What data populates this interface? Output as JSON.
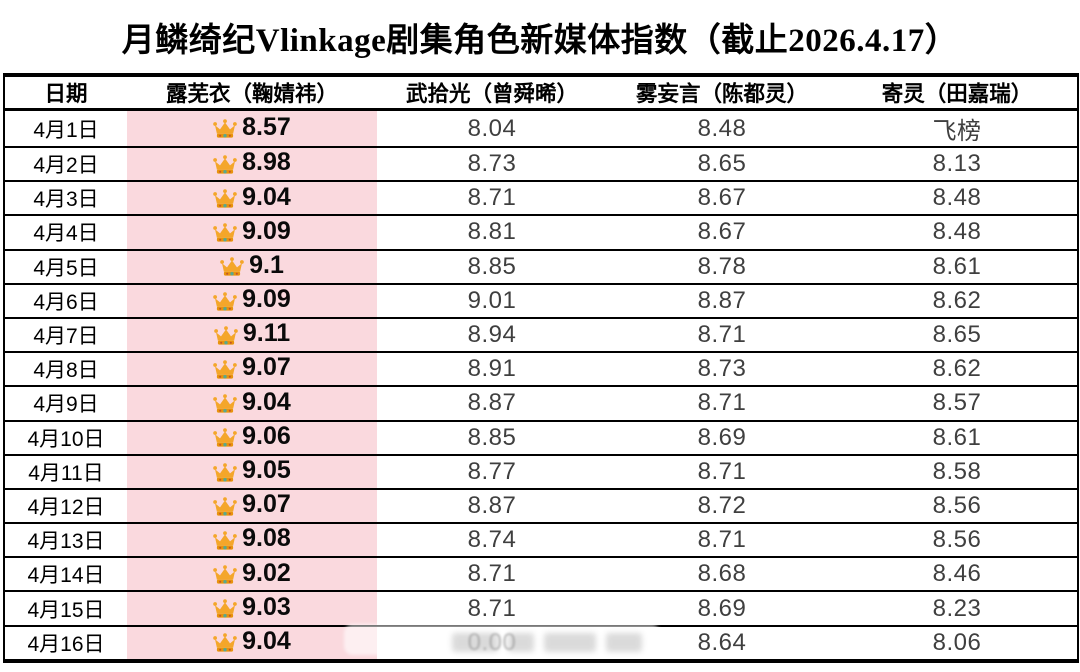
{
  "title": "月鳞绮纪Vlinkage剧集角色新媒体指数（截止2026.4.17）",
  "table": {
    "columns": [
      "日期",
      "露芜衣（鞠婧祎）",
      "武拾光（曾舜晞）",
      "雾妄言（陈都灵）",
      "寄灵（田嘉瑞）"
    ],
    "rows": [
      {
        "date": "4月1日",
        "lead": "8.57",
        "crown": true,
        "c3": "8.04",
        "c4": "8.48",
        "c5": "飞榜"
      },
      {
        "date": "4月2日",
        "lead": "8.98",
        "crown": true,
        "c3": "8.73",
        "c4": "8.65",
        "c5": "8.13"
      },
      {
        "date": "4月3日",
        "lead": "9.04",
        "crown": true,
        "c3": "8.71",
        "c4": "8.67",
        "c5": "8.48"
      },
      {
        "date": "4月4日",
        "lead": "9.09",
        "crown": true,
        "c3": "8.81",
        "c4": "8.67",
        "c5": "8.48"
      },
      {
        "date": "4月5日",
        "lead": "9.1",
        "crown": true,
        "c3": "8.85",
        "c4": "8.78",
        "c5": "8.61"
      },
      {
        "date": "4月6日",
        "lead": "9.09",
        "crown": true,
        "c3": "9.01",
        "c4": "8.87",
        "c5": "8.62"
      },
      {
        "date": "4月7日",
        "lead": "9.11",
        "crown": true,
        "c3": "8.94",
        "c4": "8.71",
        "c5": "8.65"
      },
      {
        "date": "4月8日",
        "lead": "9.07",
        "crown": true,
        "c3": "8.91",
        "c4": "8.73",
        "c5": "8.62"
      },
      {
        "date": "4月9日",
        "lead": "9.04",
        "crown": true,
        "c3": "8.87",
        "c4": "8.71",
        "c5": "8.57"
      },
      {
        "date": "4月10日",
        "lead": "9.06",
        "crown": true,
        "c3": "8.85",
        "c4": "8.69",
        "c5": "8.61"
      },
      {
        "date": "4月11日",
        "lead": "9.05",
        "crown": true,
        "c3": "8.77",
        "c4": "8.71",
        "c5": "8.58"
      },
      {
        "date": "4月12日",
        "lead": "9.07",
        "crown": true,
        "c3": "8.87",
        "c4": "8.72",
        "c5": "8.56"
      },
      {
        "date": "4月13日",
        "lead": "9.08",
        "crown": true,
        "c3": "8.74",
        "c4": "8.71",
        "c5": "8.56"
      },
      {
        "date": "4月14日",
        "lead": "9.02",
        "crown": true,
        "c3": "8.71",
        "c4": "8.68",
        "c5": "8.46"
      },
      {
        "date": "4月15日",
        "lead": "9.03",
        "crown": true,
        "c3": "8.71",
        "c4": "8.69",
        "c5": "8.23"
      },
      {
        "date": "4月16日",
        "lead": "9.04",
        "crown": true,
        "c3": "0.00",
        "c3_obscured": true,
        "c4": "8.64",
        "c5": "8.06"
      }
    ]
  },
  "icons": {
    "crown": "crown-icon"
  },
  "colors": {
    "highlight_pink": "#fad9de",
    "crown_gold": "#f4a62a",
    "crown_band": "#e8930c",
    "border": "#000000",
    "value_text": "#3f3f3f"
  }
}
